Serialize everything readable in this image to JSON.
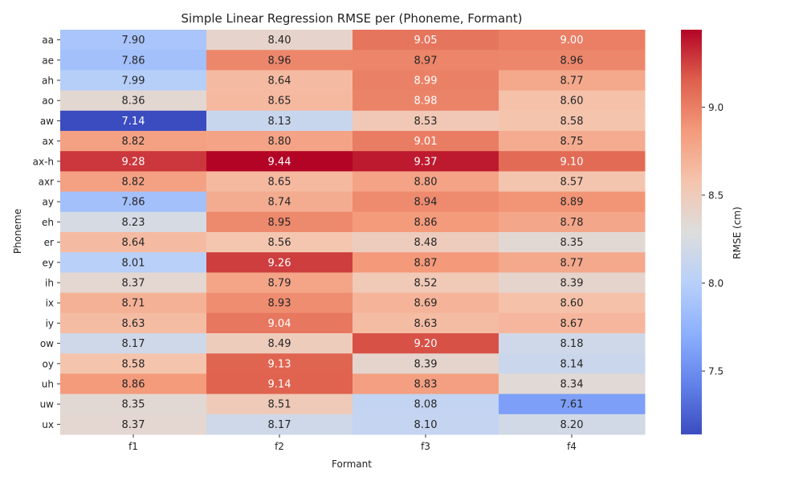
{
  "chart_data": {
    "type": "heatmap",
    "title": "Simple Linear Regression RMSE per (Phoneme, Formant)",
    "xlabel": "Formant",
    "ylabel": "Phoneme",
    "colorbar_label": "RMSE (cm)",
    "colormap": "coolwarm",
    "colorbar_range": [
      7.14,
      9.44
    ],
    "colorbar_ticks": [
      "7.5",
      "8.0",
      "8.5",
      "9.0"
    ],
    "columns": [
      "f1",
      "f2",
      "f3",
      "f4"
    ],
    "rows": [
      "aa",
      "ae",
      "ah",
      "ao",
      "aw",
      "ax",
      "ax-h",
      "axr",
      "ay",
      "eh",
      "er",
      "ey",
      "ih",
      "ix",
      "iy",
      "ow",
      "oy",
      "uh",
      "uw",
      "ux"
    ],
    "values": [
      [
        7.9,
        8.4,
        9.05,
        9.0
      ],
      [
        7.86,
        8.96,
        8.97,
        8.96
      ],
      [
        7.99,
        8.64,
        8.99,
        8.77
      ],
      [
        8.36,
        8.65,
        8.98,
        8.6
      ],
      [
        7.14,
        8.13,
        8.53,
        8.58
      ],
      [
        8.82,
        8.8,
        9.01,
        8.75
      ],
      [
        9.28,
        9.44,
        9.37,
        9.1
      ],
      [
        8.82,
        8.65,
        8.8,
        8.57
      ],
      [
        7.86,
        8.74,
        8.94,
        8.89
      ],
      [
        8.23,
        8.95,
        8.86,
        8.78
      ],
      [
        8.64,
        8.56,
        8.48,
        8.35
      ],
      [
        8.01,
        9.26,
        8.87,
        8.77
      ],
      [
        8.37,
        8.79,
        8.52,
        8.39
      ],
      [
        8.71,
        8.93,
        8.69,
        8.6
      ],
      [
        8.63,
        9.04,
        8.63,
        8.67
      ],
      [
        8.17,
        8.49,
        9.2,
        8.18
      ],
      [
        8.58,
        9.13,
        8.39,
        8.14
      ],
      [
        8.86,
        9.14,
        8.83,
        8.34
      ],
      [
        8.35,
        8.51,
        8.08,
        7.61
      ],
      [
        8.37,
        8.17,
        8.1,
        8.2
      ]
    ]
  }
}
